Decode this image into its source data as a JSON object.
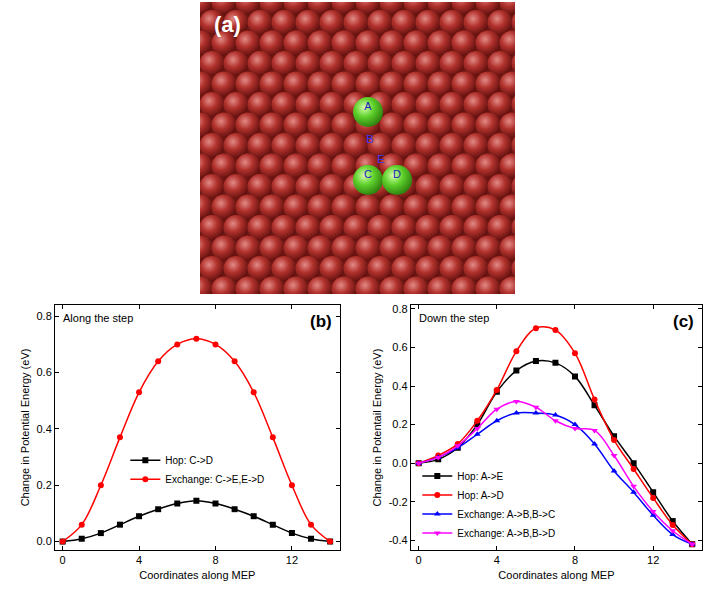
{
  "panel_a": {
    "label": "(a)",
    "atoms": [
      "A",
      "C",
      "D"
    ],
    "sites": [
      "B",
      "E"
    ]
  },
  "chart_data": [
    {
      "type": "line",
      "annotations": [
        {
          "text": "Along the step"
        },
        {
          "text": "(b)"
        }
      ],
      "x_label": "Coordinates along MEP",
      "y_label": "Change in Potential Energy (eV)",
      "x": [
        0,
        1,
        2,
        3,
        4,
        5,
        6,
        7,
        8,
        9,
        10,
        11,
        12,
        13,
        14
      ],
      "series": [
        {
          "name": "Hop: C->D",
          "color": "#000000",
          "marker": "square",
          "values": [
            0,
            0.01,
            0.03,
            0.06,
            0.09,
            0.115,
            0.135,
            0.145,
            0.135,
            0.115,
            0.09,
            0.06,
            0.03,
            0.01,
            0
          ]
        },
        {
          "name": "Exchange: C->E,E->D",
          "color": "#ff0000",
          "marker": "circle",
          "values": [
            0,
            0.06,
            0.2,
            0.37,
            0.53,
            0.64,
            0.7,
            0.72,
            0.7,
            0.64,
            0.53,
            0.37,
            0.2,
            0.06,
            0
          ]
        }
      ],
      "xlim": [
        -0.4,
        14.5
      ],
      "xticks": [
        0,
        4,
        8,
        12
      ],
      "ylim": [
        -0.03,
        0.84
      ],
      "yticks": [
        {
          "value": 0,
          "label": "0.0"
        },
        {
          "value": 0.2,
          "label": "0.2"
        },
        {
          "value": 0.4,
          "label": "0.4"
        },
        {
          "value": 0.6,
          "label": "0.6"
        },
        {
          "value": 0.8,
          "label": "0.8"
        }
      ],
      "grid": false,
      "legend": "bottom"
    },
    {
      "type": "line",
      "annotations": [
        {
          "text": "Down the step"
        },
        {
          "text": "(c)"
        }
      ],
      "x_label": "Coordinates along MEP",
      "y_label": "Change in Potentail Energy (eV)",
      "x": [
        0,
        1,
        2,
        3,
        4,
        5,
        6,
        7,
        8,
        9,
        10,
        11,
        12,
        13,
        14
      ],
      "series": [
        {
          "name": "Hop: A->E",
          "color": "#000000",
          "marker": "square",
          "values": [
            0,
            0.02,
            0.08,
            0.2,
            0.37,
            0.48,
            0.53,
            0.52,
            0.45,
            0.3,
            0.14,
            0.0,
            -0.15,
            -0.3,
            -0.42
          ]
        },
        {
          "name": "Hop: A->D",
          "color": "#ff0000",
          "marker": "circle",
          "values": [
            0,
            0.04,
            0.1,
            0.22,
            0.38,
            0.58,
            0.7,
            0.69,
            0.57,
            0.33,
            0.12,
            -0.03,
            -0.18,
            -0.32,
            -0.42
          ]
        },
        {
          "name": "Exchange: A->B,B->C",
          "color": "#0000ff",
          "marker": "triangle-up",
          "values": [
            0,
            0.03,
            0.08,
            0.15,
            0.22,
            0.26,
            0.26,
            0.25,
            0.2,
            0.1,
            -0.04,
            -0.15,
            -0.27,
            -0.37,
            -0.42
          ]
        },
        {
          "name": "Exchange: A->B,B->D",
          "color": "#ff00ff",
          "marker": "triangle-down",
          "values": [
            0,
            0.03,
            0.09,
            0.18,
            0.28,
            0.32,
            0.29,
            0.22,
            0.18,
            0.17,
            0.04,
            -0.12,
            -0.25,
            -0.35,
            -0.42
          ]
        }
      ],
      "xlim": [
        -0.4,
        14.5
      ],
      "xticks": [
        0,
        4,
        8,
        12
      ],
      "ylim": [
        -0.45,
        0.82
      ],
      "yticks": [
        -0.4,
        -0.2,
        {
          "value": 0,
          "label": "0.0"
        },
        0.2,
        0.4,
        0.6,
        0.8
      ],
      "grid": false,
      "legend": "lower left"
    }
  ]
}
